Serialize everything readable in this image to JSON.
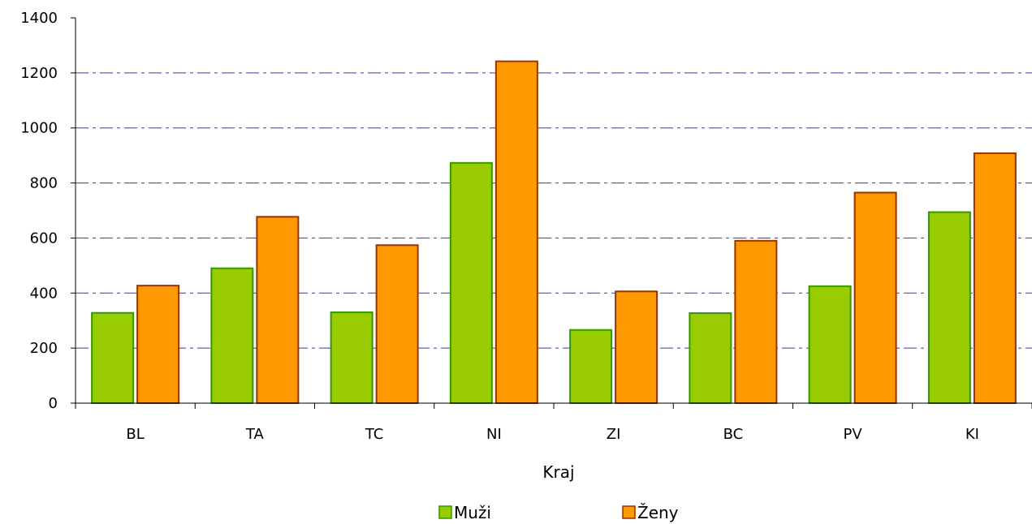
{
  "chart_data": {
    "type": "bar",
    "title": "",
    "xlabel": "Kraj",
    "ylabel": "",
    "categories": [
      "BL",
      "TA",
      "TC",
      "NI",
      "ZI",
      "BC",
      "PV",
      "KI"
    ],
    "series": [
      {
        "name": "Muži",
        "values": [
          328,
          490,
          330,
          873,
          266,
          327,
          425,
          694
        ],
        "fill": "#99cc00",
        "stroke": "#339900"
      },
      {
        "name": "Ženy",
        "values": [
          427,
          677,
          574,
          1242,
          406,
          590,
          765,
          908
        ],
        "fill": "#ff9900",
        "stroke": "#993300"
      }
    ],
    "ylim": [
      0,
      1400
    ],
    "yticks": [
      0,
      200,
      400,
      600,
      800,
      1000,
      1200,
      1400
    ],
    "ytick_labels": [
      "0",
      "200",
      "400",
      "600",
      "800",
      "1000",
      "1200",
      "1400"
    ],
    "grid": true,
    "grid_color": "#3333cc",
    "grid_style": "dash-dot",
    "legend_position": "bottom-center"
  }
}
